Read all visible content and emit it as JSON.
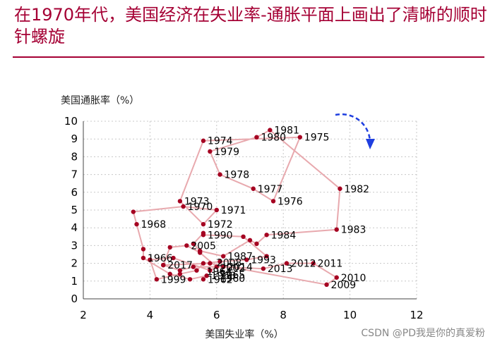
{
  "header": {
    "title": "在1970年代，美国经济在失业率-通胀平面上画出了清晰的顺时针螺旋"
  },
  "watermark": "CSDN @PD我是你的真爱粉",
  "colors": {
    "title": "#a50034",
    "marker": "#a50021",
    "path": "#e8a9ae",
    "arrow": "#1f3fe0",
    "grid": "#c8c8c8"
  },
  "chart_data": {
    "type": "scatter",
    "connected": true,
    "xlabel": "美国失业率（%）",
    "ylabel": "美国通胀率（%）",
    "xlim": [
      2,
      12
    ],
    "ylim": [
      0,
      10
    ],
    "x_ticks": [
      2,
      4,
      6,
      8,
      10,
      12
    ],
    "y_ticks": [
      0,
      1,
      2,
      3,
      4,
      5,
      6,
      7,
      8,
      9,
      10
    ],
    "grid": true,
    "annotation": "clockwise-arrow",
    "points": [
      {
        "label": "1962",
        "x": 5.6,
        "y": 1.1
      },
      {
        "label": "1963",
        "x": 5.7,
        "y": 1.3
      },
      {
        "label": "",
        "x": 5.2,
        "y": 1.1
      },
      {
        "label": "",
        "x": 4.6,
        "y": 1.4
      },
      {
        "label": "1966",
        "x": 3.8,
        "y": 2.3
      },
      {
        "label": "",
        "x": 3.8,
        "y": 2.8
      },
      {
        "label": "1968",
        "x": 3.6,
        "y": 4.2
      },
      {
        "label": "",
        "x": 3.5,
        "y": 4.9
      },
      {
        "label": "1970",
        "x": 5.0,
        "y": 5.2
      },
      {
        "label": "1971",
        "x": 6.0,
        "y": 5.0
      },
      {
        "label": "1972",
        "x": 5.6,
        "y": 4.2
      },
      {
        "label": "1973",
        "x": 4.9,
        "y": 5.5
      },
      {
        "label": "1974",
        "x": 5.6,
        "y": 8.9
      },
      {
        "label": "1975",
        "x": 8.5,
        "y": 9.1
      },
      {
        "label": "1976",
        "x": 7.7,
        "y": 5.5
      },
      {
        "label": "1977",
        "x": 7.1,
        "y": 6.2
      },
      {
        "label": "1978",
        "x": 6.1,
        "y": 7.0
      },
      {
        "label": "1979",
        "x": 5.8,
        "y": 8.3
      },
      {
        "label": "1980",
        "x": 7.2,
        "y": 9.1
      },
      {
        "label": "1981",
        "x": 7.6,
        "y": 9.5
      },
      {
        "label": "1982",
        "x": 9.7,
        "y": 6.2
      },
      {
        "label": "1983",
        "x": 9.6,
        "y": 3.9
      },
      {
        "label": "1984",
        "x": 7.5,
        "y": 3.6
      },
      {
        "label": "",
        "x": 7.2,
        "y": 3.1
      },
      {
        "label": "",
        "x": 7.0,
        "y": 3.3
      },
      {
        "label": "1987",
        "x": 6.2,
        "y": 2.4
      },
      {
        "label": "",
        "x": 5.5,
        "y": 2.7
      },
      {
        "label": "",
        "x": 5.3,
        "y": 3.1
      },
      {
        "label": "",
        "x": 5.6,
        "y": 3.7
      },
      {
        "label": "1990",
        "x": 5.6,
        "y": 3.6
      },
      {
        "label": "",
        "x": 6.8,
        "y": 3.5
      },
      {
        "label": "",
        "x": 7.5,
        "y": 2.4
      },
      {
        "label": "1993",
        "x": 6.9,
        "y": 2.2
      },
      {
        "label": "",
        "x": 6.1,
        "y": 2.1
      },
      {
        "label": "",
        "x": 5.6,
        "y": 2.0
      },
      {
        "label": "",
        "x": 5.4,
        "y": 1.6
      },
      {
        "label": "",
        "x": 4.9,
        "y": 1.4
      },
      {
        "label": "1999",
        "x": 4.2,
        "y": 1.1
      },
      {
        "label": "",
        "x": 4.0,
        "y": 2.2
      },
      {
        "label": "",
        "x": 4.7,
        "y": 2.3
      },
      {
        "label": "",
        "x": 5.8,
        "y": 1.6
      },
      {
        "label": "",
        "x": 6.0,
        "y": 1.8
      },
      {
        "label": "",
        "x": 5.5,
        "y": 2.6
      },
      {
        "label": "2005",
        "x": 5.1,
        "y": 3.0
      },
      {
        "label": "",
        "x": 4.6,
        "y": 2.9
      },
      {
        "label": "",
        "x": 4.4,
        "y": 1.9
      },
      {
        "label": "",
        "x": 5.8,
        "y": 2.0
      },
      {
        "label": "2009",
        "x": 9.3,
        "y": 0.8
      },
      {
        "label": "2010",
        "x": 9.6,
        "y": 1.2
      },
      {
        "label": "2011",
        "x": 8.9,
        "y": 2.0
      },
      {
        "label": "2012",
        "x": 8.1,
        "y": 2.0
      },
      {
        "label": "2013",
        "x": 7.4,
        "y": 1.7
      },
      {
        "label": "2014",
        "x": 6.2,
        "y": 1.8
      },
      {
        "label": "",
        "x": 5.3,
        "y": 1.8
      },
      {
        "label": "",
        "x": 4.9,
        "y": 1.6
      },
      {
        "label": "2017",
        "x": 4.4,
        "y": 1.9
      }
    ],
    "extra_labels": [
      {
        "text": "2008",
        "x": 6.0,
        "y": 2.05
      },
      {
        "text": "2002",
        "x": 6.1,
        "y": 1.75
      },
      {
        "text": "1964",
        "x": 5.7,
        "y": 1.55
      },
      {
        "text": "1965",
        "x": 6.1,
        "y": 1.35
      },
      {
        "text": "1960",
        "x": 6.1,
        "y": 1.15
      }
    ]
  }
}
